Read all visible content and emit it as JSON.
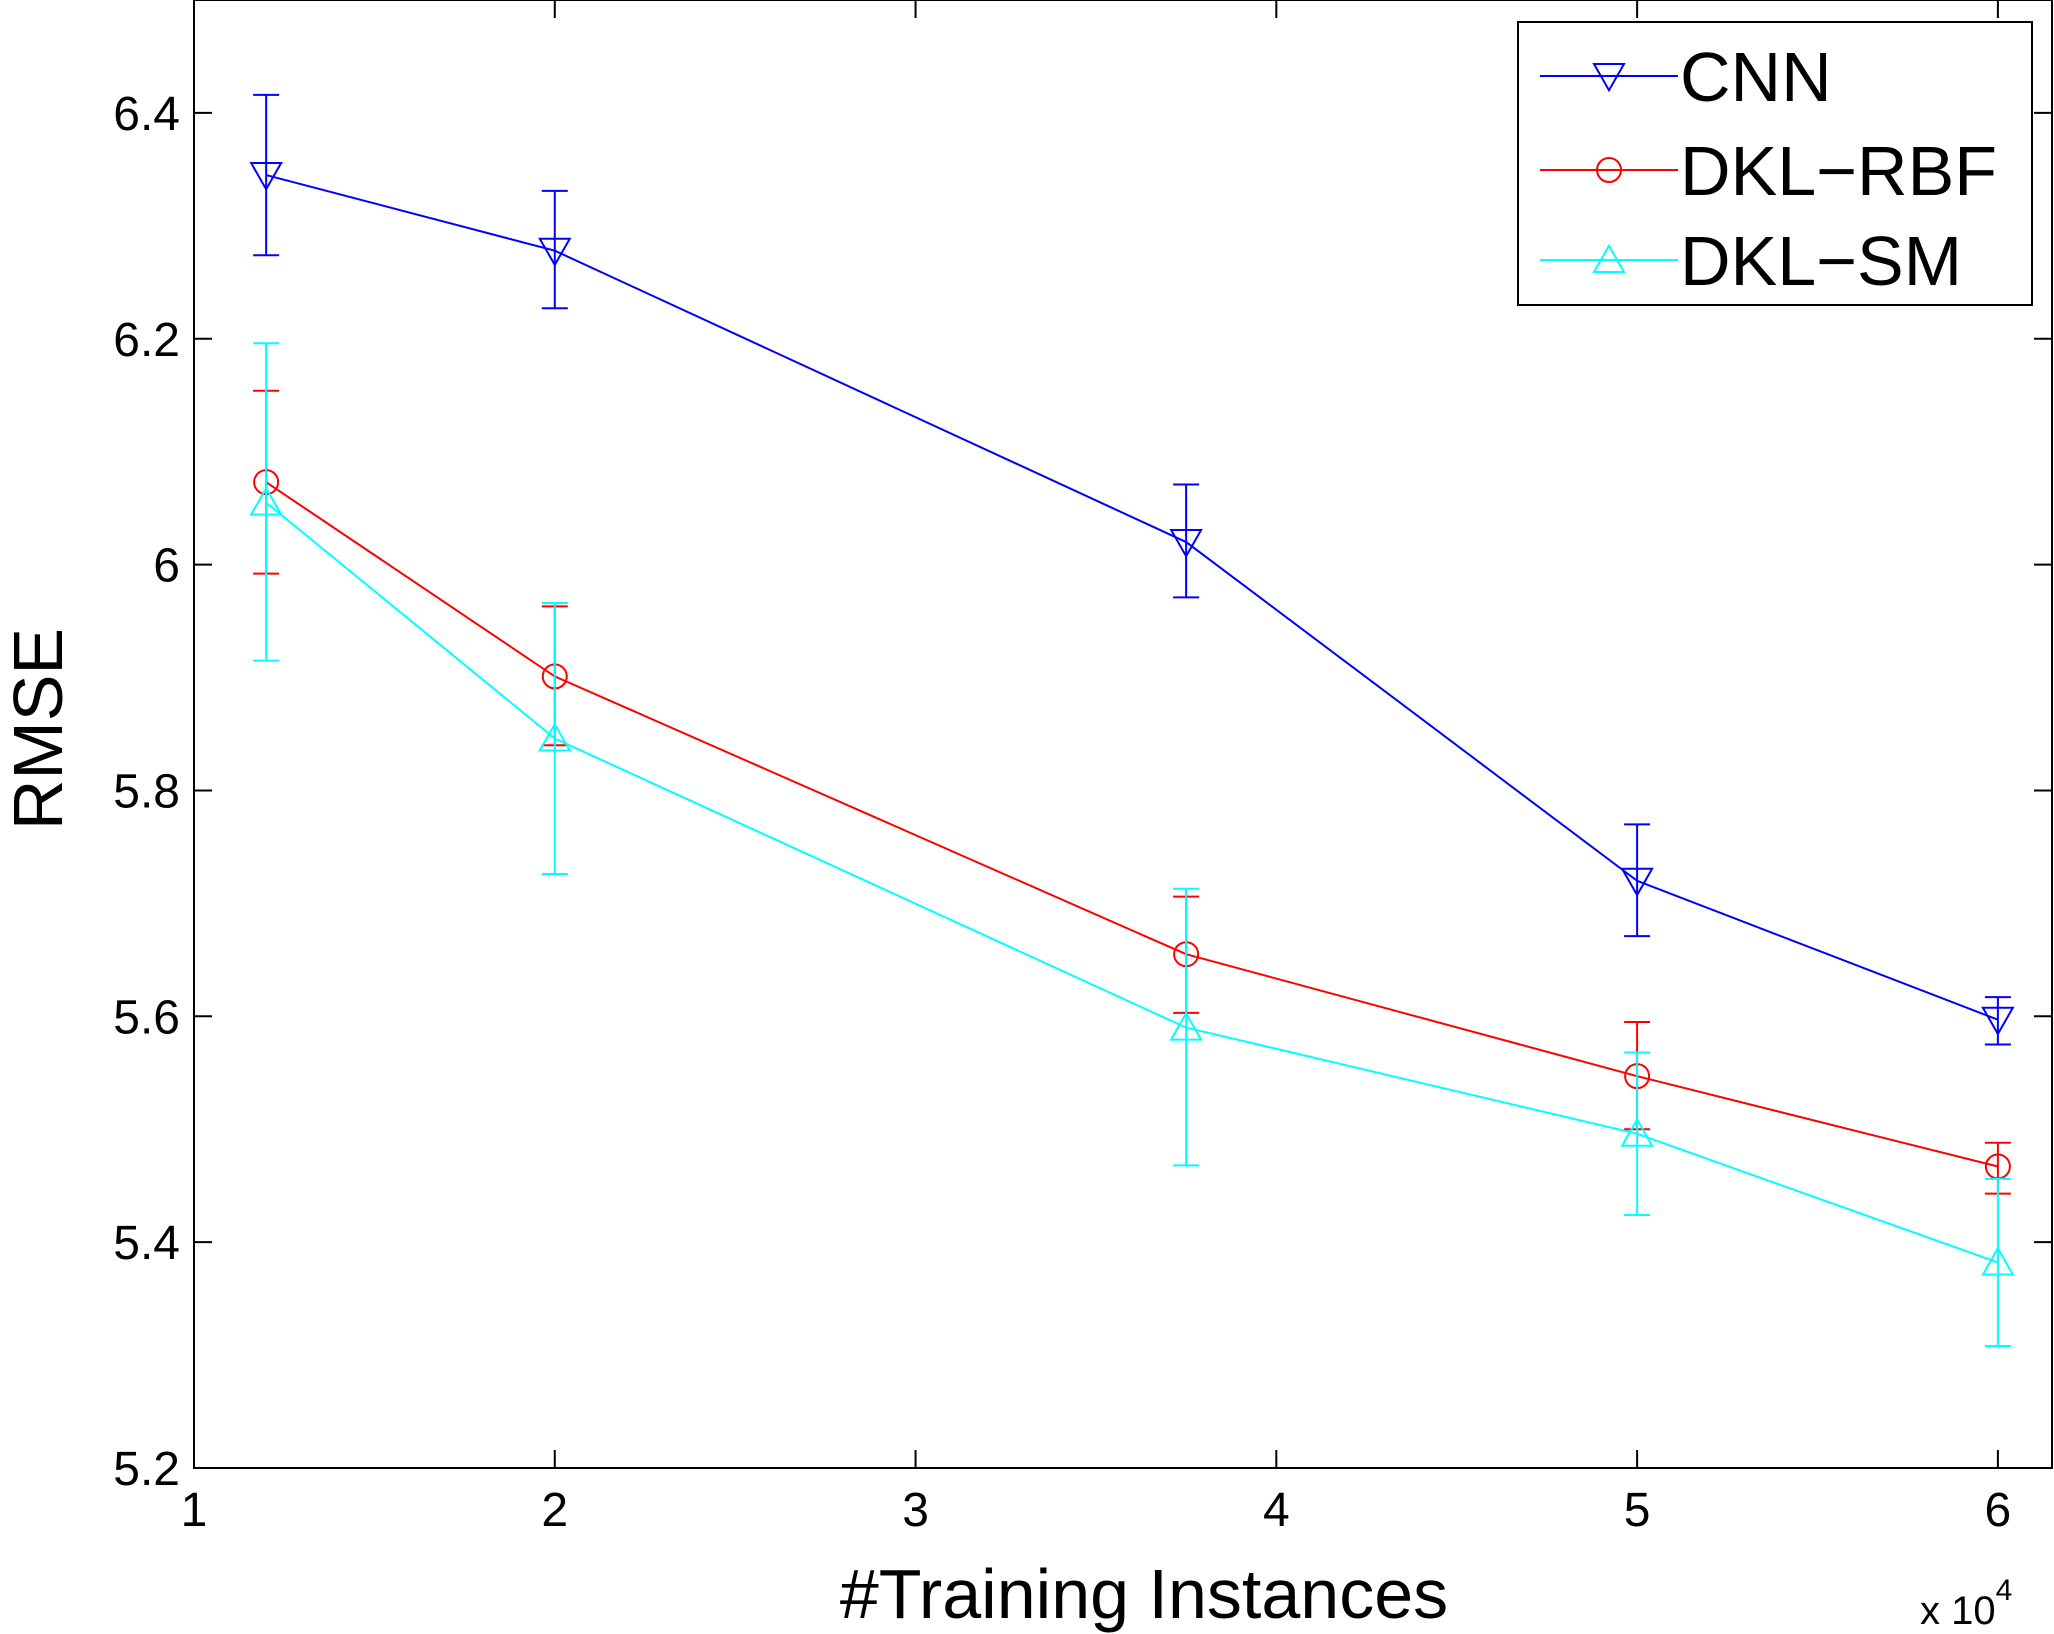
{
  "chart_data": {
    "type": "line",
    "xlabel": "#Training Instances",
    "ylabel": "RMSE",
    "x_multiplier": {
      "base": "x 10",
      "exponent": "4"
    },
    "xlim": [
      1,
      6.15
    ],
    "ylim": [
      5.2,
      6.5
    ],
    "xticks": [
      1,
      2,
      3,
      4,
      5,
      6
    ],
    "yticks": [
      5.2,
      5.4,
      5.6,
      5.8,
      6.0,
      6.2,
      6.4
    ],
    "xtick_labels": [
      "1",
      "2",
      "3",
      "4",
      "5",
      "6"
    ],
    "ytick_labels": [
      "5.2",
      "5.4",
      "5.6",
      "5.8",
      "6",
      "6.2",
      "6.4"
    ],
    "grid": false,
    "legend_position": "top-right",
    "x": [
      1.2,
      2.0,
      3.75,
      5.0,
      6.0
    ],
    "series": [
      {
        "name": "CNN",
        "color": "#0000ff",
        "marker": "triangle-down",
        "values": [
          6.345,
          6.278,
          6.02,
          5.72,
          5.597
        ],
        "err_low": [
          6.274,
          6.227,
          5.971,
          5.671,
          5.575
        ],
        "err_high": [
          6.416,
          6.331,
          6.071,
          5.77,
          5.617
        ]
      },
      {
        "name": "DKL−RBF",
        "color": "#ff0000",
        "marker": "circle",
        "values": [
          6.073,
          5.901,
          5.655,
          5.547,
          5.467
        ],
        "err_low": [
          5.992,
          5.84,
          5.603,
          5.5,
          5.443
        ],
        "err_high": [
          6.154,
          5.963,
          5.706,
          5.595,
          5.488
        ]
      },
      {
        "name": "DKL−SM",
        "color": "#00ffff",
        "marker": "triangle-up",
        "values": [
          6.055,
          5.846,
          5.59,
          5.496,
          5.382
        ],
        "err_low": [
          5.915,
          5.726,
          5.468,
          5.424,
          5.308
        ],
        "err_high": [
          6.196,
          5.966,
          5.713,
          5.568,
          5.456
        ]
      }
    ]
  }
}
